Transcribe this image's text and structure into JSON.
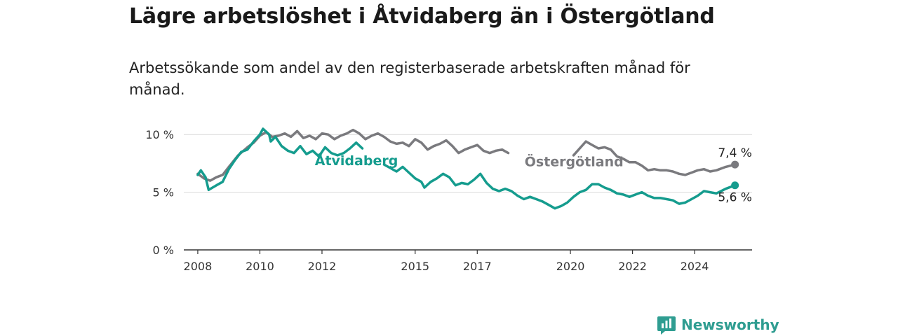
{
  "title": "Lägre arbetslöshet i Åtvidaberg än i Östergötland",
  "subtitle": "Arbetssökande som andel av den registerbaserade arbetskraften månad för månad.",
  "brand": "Newsworthy",
  "colors": {
    "atvidaberg": "#159c8e",
    "ostergotland": "#7a7a7e",
    "grid": "#d9d9d9",
    "brand": "#2f9d91"
  },
  "chart_data": {
    "type": "line",
    "title": "Lägre arbetslöshet i Åtvidaberg än i Östergötland",
    "subtitle": "Arbetssökande som andel av den registerbaserade arbetskraften månad för månad.",
    "xlim": [
      2007.55,
      2025.85
    ],
    "ylim": [
      0,
      10.5
    ],
    "y_ticks": [
      0,
      5,
      10
    ],
    "y_tick_labels": [
      "0 %",
      "5 %",
      "10 %"
    ],
    "x_ticks": [
      2008,
      2010,
      2012,
      2015,
      2017,
      2020,
      2022,
      2024
    ],
    "x_tick_labels": [
      "2008",
      "2010",
      "2012",
      "2015",
      "2017",
      "2020",
      "2022",
      "2024"
    ],
    "grid": true,
    "series": [
      {
        "name": "Östergötland",
        "end_label": "7,4 %",
        "points": [
          [
            2008.0,
            6.6
          ],
          [
            2008.2,
            6.2
          ],
          [
            2008.4,
            6.0
          ],
          [
            2008.6,
            6.3
          ],
          [
            2008.8,
            6.5
          ],
          [
            2009.0,
            7.2
          ],
          [
            2009.3,
            8.2
          ],
          [
            2009.6,
            8.9
          ],
          [
            2009.8,
            9.3
          ],
          [
            2010.0,
            9.9
          ],
          [
            2010.2,
            10.2
          ],
          [
            2010.4,
            9.8
          ],
          [
            2010.6,
            9.9
          ],
          [
            2010.8,
            10.1
          ],
          [
            2011.0,
            9.8
          ],
          [
            2011.2,
            10.3
          ],
          [
            2011.4,
            9.7
          ],
          [
            2011.6,
            9.9
          ],
          [
            2011.8,
            9.6
          ],
          [
            2012.0,
            10.1
          ],
          [
            2012.2,
            10.0
          ],
          [
            2012.4,
            9.6
          ],
          [
            2012.6,
            9.9
          ],
          [
            2012.8,
            10.1
          ],
          [
            2013.0,
            10.4
          ],
          [
            2013.2,
            10.1
          ],
          [
            2013.4,
            9.6
          ],
          [
            2013.6,
            9.9
          ],
          [
            2013.8,
            10.1
          ],
          [
            2014.0,
            9.8
          ],
          [
            2014.2,
            9.4
          ],
          [
            2014.4,
            9.2
          ],
          [
            2014.6,
            9.3
          ],
          [
            2014.8,
            9.0
          ],
          [
            2015.0,
            9.6
          ],
          [
            2015.2,
            9.3
          ],
          [
            2015.4,
            8.7
          ],
          [
            2015.6,
            9.0
          ],
          [
            2015.8,
            9.2
          ],
          [
            2016.0,
            9.5
          ],
          [
            2016.2,
            9.0
          ],
          [
            2016.4,
            8.4
          ],
          [
            2016.6,
            8.7
          ],
          [
            2016.8,
            8.9
          ],
          [
            2017.0,
            9.1
          ],
          [
            2017.2,
            8.6
          ],
          [
            2017.4,
            8.4
          ],
          [
            2017.6,
            8.6
          ],
          [
            2017.8,
            8.7
          ],
          [
            2018.0,
            8.4
          ]
        ],
        "points_after_gap": [
          [
            2020.1,
            8.2
          ],
          [
            2020.3,
            8.8
          ],
          [
            2020.5,
            9.4
          ],
          [
            2020.7,
            9.1
          ],
          [
            2020.9,
            8.8
          ],
          [
            2021.1,
            8.9
          ],
          [
            2021.3,
            8.7
          ],
          [
            2021.5,
            8.1
          ],
          [
            2021.7,
            7.9
          ],
          [
            2021.9,
            7.6
          ],
          [
            2022.1,
            7.6
          ],
          [
            2022.3,
            7.3
          ],
          [
            2022.5,
            6.9
          ],
          [
            2022.7,
            7.0
          ],
          [
            2022.9,
            6.9
          ],
          [
            2023.1,
            6.9
          ],
          [
            2023.3,
            6.8
          ],
          [
            2023.5,
            6.6
          ],
          [
            2023.7,
            6.5
          ],
          [
            2023.9,
            6.7
          ],
          [
            2024.1,
            6.9
          ],
          [
            2024.3,
            7.0
          ],
          [
            2024.5,
            6.8
          ],
          [
            2024.7,
            6.9
          ],
          [
            2025.0,
            7.2
          ],
          [
            2025.3,
            7.4
          ]
        ]
      },
      {
        "name": "Åtvidaberg",
        "end_label": "5,6 %",
        "points": [
          [
            2008.0,
            6.5
          ],
          [
            2008.1,
            6.9
          ],
          [
            2008.25,
            6.3
          ],
          [
            2008.35,
            5.2
          ],
          [
            2008.6,
            5.6
          ],
          [
            2008.8,
            5.9
          ],
          [
            2009.0,
            7.0
          ],
          [
            2009.2,
            7.8
          ],
          [
            2009.4,
            8.5
          ],
          [
            2009.6,
            8.7
          ],
          [
            2009.8,
            9.4
          ],
          [
            2010.0,
            10.0
          ],
          [
            2010.1,
            10.5
          ],
          [
            2010.3,
            10.0
          ],
          [
            2010.35,
            9.4
          ],
          [
            2010.5,
            9.8
          ],
          [
            2010.7,
            9.0
          ],
          [
            2010.9,
            8.6
          ],
          [
            2011.1,
            8.4
          ],
          [
            2011.3,
            9.0
          ],
          [
            2011.5,
            8.3
          ],
          [
            2011.7,
            8.6
          ],
          [
            2011.9,
            8.1
          ],
          [
            2012.1,
            8.9
          ],
          [
            2012.3,
            8.4
          ],
          [
            2012.5,
            8.2
          ],
          [
            2012.7,
            8.4
          ],
          [
            2012.9,
            8.8
          ],
          [
            2013.1,
            9.3
          ],
          [
            2013.3,
            8.8
          ]
        ],
        "points_after_gap": [
          [
            2014.0,
            7.4
          ],
          [
            2014.2,
            7.1
          ],
          [
            2014.4,
            6.8
          ],
          [
            2014.6,
            7.2
          ],
          [
            2014.8,
            6.7
          ],
          [
            2015.0,
            6.2
          ],
          [
            2015.2,
            5.9
          ],
          [
            2015.3,
            5.4
          ],
          [
            2015.5,
            5.9
          ],
          [
            2015.7,
            6.2
          ],
          [
            2015.9,
            6.6
          ],
          [
            2016.1,
            6.3
          ],
          [
            2016.3,
            5.6
          ],
          [
            2016.5,
            5.8
          ],
          [
            2016.7,
            5.7
          ],
          [
            2016.9,
            6.1
          ],
          [
            2017.1,
            6.6
          ],
          [
            2017.3,
            5.8
          ],
          [
            2017.5,
            5.3
          ],
          [
            2017.7,
            5.1
          ],
          [
            2017.9,
            5.3
          ],
          [
            2018.1,
            5.1
          ],
          [
            2018.3,
            4.7
          ],
          [
            2018.5,
            4.4
          ],
          [
            2018.7,
            4.6
          ],
          [
            2018.9,
            4.4
          ],
          [
            2019.1,
            4.2
          ],
          [
            2019.3,
            3.9
          ],
          [
            2019.5,
            3.6
          ],
          [
            2019.7,
            3.8
          ],
          [
            2019.9,
            4.1
          ],
          [
            2020.1,
            4.6
          ],
          [
            2020.3,
            5.0
          ],
          [
            2020.5,
            5.2
          ],
          [
            2020.7,
            5.7
          ],
          [
            2020.9,
            5.7
          ],
          [
            2021.1,
            5.4
          ],
          [
            2021.3,
            5.2
          ],
          [
            2021.5,
            4.9
          ],
          [
            2021.7,
            4.8
          ],
          [
            2021.9,
            4.6
          ],
          [
            2022.1,
            4.8
          ],
          [
            2022.3,
            5.0
          ],
          [
            2022.5,
            4.7
          ],
          [
            2022.7,
            4.5
          ],
          [
            2022.9,
            4.5
          ],
          [
            2023.1,
            4.4
          ],
          [
            2023.3,
            4.3
          ],
          [
            2023.5,
            4.0
          ],
          [
            2023.7,
            4.1
          ],
          [
            2023.9,
            4.4
          ],
          [
            2024.1,
            4.7
          ],
          [
            2024.3,
            5.1
          ],
          [
            2024.5,
            5.0
          ],
          [
            2024.7,
            4.9
          ],
          [
            2025.0,
            5.3
          ],
          [
            2025.3,
            5.6
          ]
        ]
      }
    ]
  }
}
